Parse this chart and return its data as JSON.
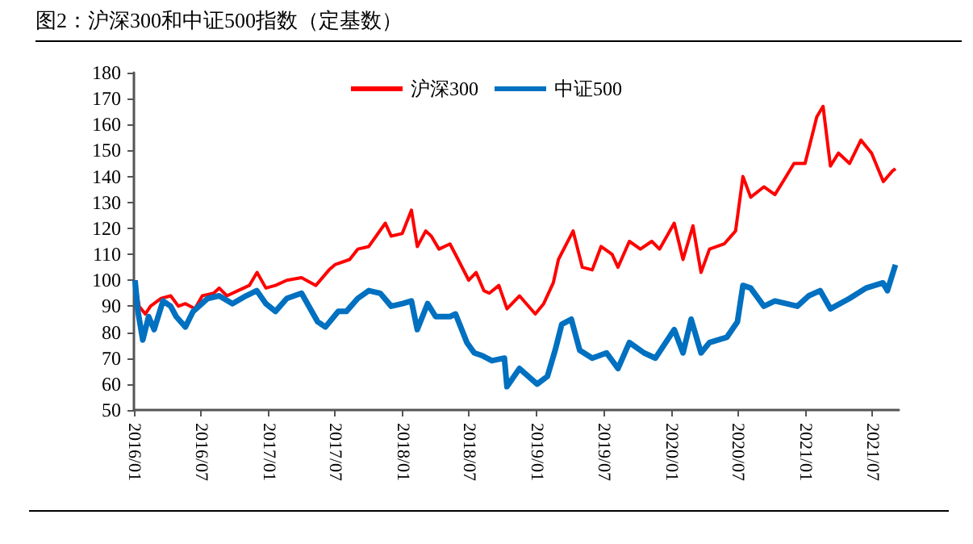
{
  "chart_data": {
    "type": "line",
    "title": "图2：沪深300和中证500指数（定基数）",
    "xlim": [
      "2016-01-01",
      "2021-09-12"
    ],
    "xticks": [
      {
        "value": "2016-01-01",
        "label": "2016/01"
      },
      {
        "value": "2016-07-01",
        "label": "2016/07"
      },
      {
        "value": "2017-01-01",
        "label": "2017/01"
      },
      {
        "value": "2017-07-01",
        "label": "2017/07"
      },
      {
        "value": "2018-01-01",
        "label": "2018/01"
      },
      {
        "value": "2018-07-01",
        "label": "2018/07"
      },
      {
        "value": "2019-01-01",
        "label": "2019/01"
      },
      {
        "value": "2019-07-01",
        "label": "2019/07"
      },
      {
        "value": "2020-01-01",
        "label": "2020/01"
      },
      {
        "value": "2020-07-01",
        "label": "2020/07"
      },
      {
        "value": "2021-01-01",
        "label": "2021/01"
      },
      {
        "value": "2021-07-01",
        "label": "2021/07"
      }
    ],
    "ylim": [
      50,
      180
    ],
    "yticks": [
      50,
      60,
      70,
      80,
      90,
      100,
      110,
      120,
      130,
      140,
      150,
      160,
      170,
      180
    ],
    "grid": false,
    "legend": "top",
    "marker": "none",
    "line_style": "solid",
    "series": [
      {
        "name": "沪深300",
        "color": "#ff0000",
        "x": [
          "2016-01-04",
          "2016-01-15",
          "2016-02-01",
          "2016-02-15",
          "2016-03-15",
          "2016-04-10",
          "2016-05-01",
          "2016-05-20",
          "2016-06-15",
          "2016-07-05",
          "2016-08-05",
          "2016-08-20",
          "2016-09-10",
          "2016-10-10",
          "2016-11-10",
          "2016-12-01",
          "2016-12-25",
          "2017-01-20",
          "2017-02-20",
          "2017-04-01",
          "2017-05-10",
          "2017-06-15",
          "2017-07-01",
          "2017-08-10",
          "2017-09-01",
          "2017-10-01",
          "2017-11-15",
          "2017-12-01",
          "2017-12-31",
          "2018-01-25",
          "2018-02-10",
          "2018-03-05",
          "2018-03-20",
          "2018-04-10",
          "2018-05-10",
          "2018-06-01",
          "2018-06-30",
          "2018-07-20",
          "2018-08-10",
          "2018-08-25",
          "2018-09-20",
          "2018-10-12",
          "2018-11-15",
          "2018-12-28",
          "2019-01-20",
          "2019-02-15",
          "2019-03-01",
          "2019-04-10",
          "2019-05-05",
          "2019-06-01",
          "2019-06-25",
          "2019-07-25",
          "2019-08-10",
          "2019-09-10",
          "2019-10-10",
          "2019-11-10",
          "2019-12-01",
          "2020-01-10",
          "2020-02-03",
          "2020-03-01",
          "2020-03-23",
          "2020-04-15",
          "2020-05-25",
          "2020-06-25",
          "2020-07-15",
          "2020-08-05",
          "2020-09-10",
          "2020-10-10",
          "2020-11-01",
          "2020-12-01",
          "2020-12-31",
          "2021-02-01",
          "2021-02-18",
          "2021-03-10",
          "2021-04-01",
          "2021-05-01",
          "2021-06-01",
          "2021-06-30",
          "2021-08-01",
          "2021-08-25",
          "2021-09-03"
        ],
        "values": [
          100,
          90,
          87,
          90,
          93,
          94,
          90,
          91,
          89,
          94,
          95,
          97,
          94,
          96,
          98,
          103,
          97,
          98,
          100,
          101,
          98,
          104,
          106,
          108,
          112,
          113,
          122,
          117,
          118,
          127,
          113,
          119,
          117,
          112,
          114,
          108,
          100,
          103,
          96,
          95,
          98,
          89,
          94,
          87,
          91,
          99,
          108,
          119,
          105,
          104,
          113,
          110,
          105,
          115,
          112,
          115,
          112,
          122,
          108,
          121,
          103,
          112,
          114,
          119,
          140,
          132,
          136,
          133,
          138,
          145,
          145,
          163,
          167,
          144,
          149,
          145,
          154,
          149,
          138,
          142,
          143
        ]
      },
      {
        "name": "中证500",
        "color": "#0070c0",
        "x": [
          "2016-01-04",
          "2016-01-12",
          "2016-01-25",
          "2016-02-10",
          "2016-02-25",
          "2016-03-20",
          "2016-04-10",
          "2016-04-25",
          "2016-05-20",
          "2016-06-10",
          "2016-07-20",
          "2016-08-20",
          "2016-09-25",
          "2016-11-01",
          "2016-11-30",
          "2016-12-25",
          "2017-01-20",
          "2017-02-20",
          "2017-04-01",
          "2017-05-15",
          "2017-06-05",
          "2017-07-10",
          "2017-08-01",
          "2017-09-01",
          "2017-10-01",
          "2017-11-01",
          "2017-12-01",
          "2018-01-01",
          "2018-01-25",
          "2018-02-10",
          "2018-03-10",
          "2018-04-01",
          "2018-05-10",
          "2018-05-25",
          "2018-06-25",
          "2018-07-15",
          "2018-08-05",
          "2018-09-01",
          "2018-10-05",
          "2018-10-12",
          "2018-11-15",
          "2019-01-02",
          "2019-01-30",
          "2019-02-20",
          "2019-03-10",
          "2019-04-05",
          "2019-04-28",
          "2019-06-01",
          "2019-07-10",
          "2019-08-10",
          "2019-09-10",
          "2019-10-20",
          "2019-11-20",
          "2020-01-10",
          "2020-02-03",
          "2020-02-25",
          "2020-03-23",
          "2020-04-15",
          "2020-06-01",
          "2020-06-30",
          "2020-07-15",
          "2020-08-05",
          "2020-09-10",
          "2020-10-10",
          "2020-11-10",
          "2020-12-10",
          "2021-01-10",
          "2021-02-10",
          "2021-03-10",
          "2021-05-01",
          "2021-06-15",
          "2021-07-31",
          "2021-08-12",
          "2021-09-03"
        ],
        "values": [
          100,
          88,
          77,
          86,
          81,
          92,
          90,
          86,
          82,
          88,
          93,
          94,
          91,
          94,
          96,
          91,
          88,
          93,
          95,
          84,
          82,
          88,
          88,
          93,
          96,
          95,
          90,
          91,
          92,
          81,
          91,
          86,
          86,
          87,
          76,
          72,
          71,
          69,
          70,
          59,
          66,
          60,
          63,
          73,
          83,
          85,
          73,
          70,
          72,
          66,
          76,
          72,
          70,
          81,
          72,
          85,
          72,
          76,
          78,
          84,
          98,
          97,
          90,
          92,
          91,
          90,
          94,
          96,
          89,
          93,
          97,
          99,
          96,
          106
        ]
      }
    ]
  }
}
